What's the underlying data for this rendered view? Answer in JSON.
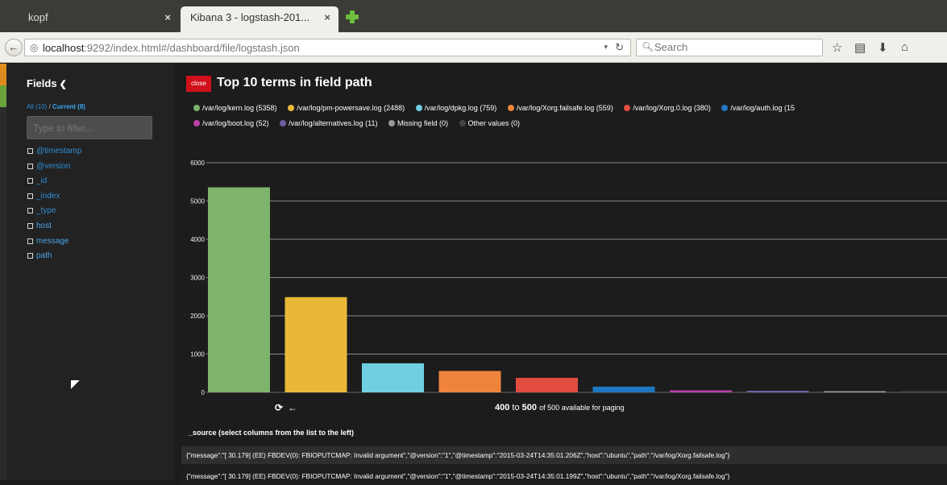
{
  "tabs": [
    {
      "title": "kopf",
      "close": "×"
    },
    {
      "title": "Kibana 3 - logstash-201...",
      "close": "×"
    }
  ],
  "nav": {
    "back_icon": "←",
    "url_host": "localhost",
    "url_rest": ":9292/index.html#/dashboard/file/logstash.json",
    "search_placeholder": "Search"
  },
  "sidebar": {
    "title": "Fields",
    "all_label": "All (10)",
    "separator": "/",
    "current_label": "Current (8)",
    "filter_placeholder": "Type to filter...",
    "fields": [
      "@timestamp",
      "@version",
      "_id",
      "_index",
      "_type",
      "host",
      "message",
      "path"
    ]
  },
  "panel": {
    "close_label": "close",
    "title": "Top 10 terms in field path"
  },
  "legend": [
    {
      "label": "/var/log/kern.log (5358)",
      "color": "#7eb26d"
    },
    {
      "label": "/var/log/pm-powersave.log (2488)",
      "color": "#eab839"
    },
    {
      "label": "/var/log/dpkg.log (759)",
      "color": "#6ed0e0"
    },
    {
      "label": "/var/log/Xorg.failsafe.log (559)",
      "color": "#ef843c"
    },
    {
      "label": "/var/log/Xorg.0.log (380)",
      "color": "#e24d42"
    },
    {
      "label": "/var/log/auth.log (15",
      "color": "#1f78c1"
    },
    {
      "label": "/var/log/boot.log (52)",
      "color": "#ba43a9"
    },
    {
      "label": "/var/log/alternatives.log (11)",
      "color": "#705da0"
    },
    {
      "label": "Missing field (0)",
      "color": "#999999"
    },
    {
      "label": "Other values (0)",
      "color": "#444444"
    }
  ],
  "chart_data": {
    "type": "bar",
    "categories": [
      "/var/log/kern.log",
      "/var/log/pm-powersave.log",
      "/var/log/dpkg.log",
      "/var/log/Xorg.failsafe.log",
      "/var/log/Xorg.0.log",
      "/var/log/auth.log",
      "/var/log/boot.log",
      "/var/log/alternatives.log",
      "Missing field",
      "Other values"
    ],
    "values": [
      5358,
      2488,
      759,
      559,
      380,
      150,
      52,
      11,
      0,
      0
    ],
    "colors": [
      "#7eb26d",
      "#eab839",
      "#6ed0e0",
      "#ef843c",
      "#e24d42",
      "#1f78c1",
      "#ba43a9",
      "#705da0",
      "#999999",
      "#444444"
    ],
    "ylim": [
      0,
      6000
    ],
    "yticks": [
      0,
      1000,
      2000,
      3000,
      4000,
      5000,
      6000
    ],
    "grid": true
  },
  "pager": {
    "from": "400",
    "to_word": "to",
    "to": "500",
    "suffix": "of 500 available for paging"
  },
  "source": {
    "title": "_source (select columns from the list to the left)",
    "rows": [
      "{\"message\":\"[ 30.179] (EE) FBDEV(0): FBIOPUTCMAP: Invalid argument\",\"@version\":\"1\",\"@timestamp\":\"2015-03-24T14:35:01.206Z\",\"host\":\"ubuntu\",\"path\":\"/var/log/Xorg.failsafe.log\"}",
      "{\"message\":\"[ 30.179] (EE) FBDEV(0): FBIOPUTCMAP: Invalid argument\",\"@version\":\"1\",\"@timestamp\":\"2015-03-24T14:35:01.199Z\",\"host\":\"ubuntu\",\"path\":\"/var/log/Xorg.failsafe.log\"}"
    ]
  }
}
